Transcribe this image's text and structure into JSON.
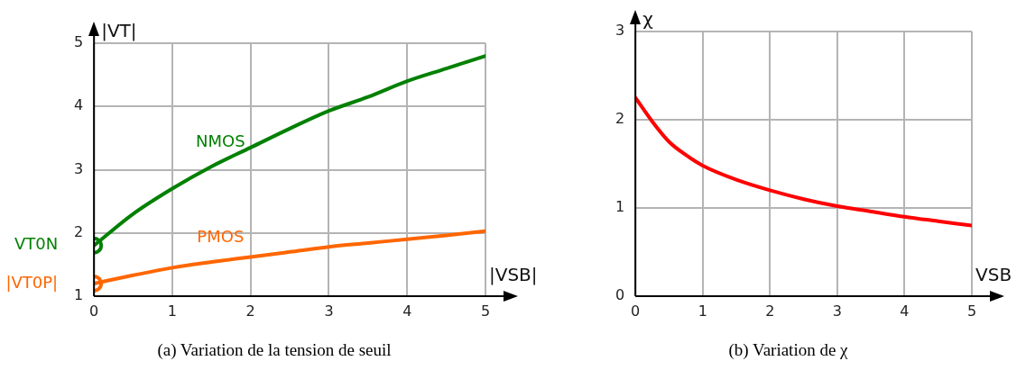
{
  "chart_data": [
    {
      "type": "line",
      "title": "(a) Variation de la tension de seuil",
      "xlabel": "|VSB|",
      "ylabel": "|VT|",
      "xlim": [
        0,
        5
      ],
      "xticks": [
        0,
        1,
        2,
        3,
        4,
        5
      ],
      "ylim": [
        1,
        5
      ],
      "yticks": [
        1,
        2,
        3,
        4,
        5
      ],
      "grid": true,
      "legend": false,
      "series": [
        {
          "name": "NMOS",
          "color": "#008000",
          "x": [
            0,
            0.5,
            1,
            1.5,
            2,
            2.5,
            3,
            3.5,
            4,
            4.5,
            5
          ],
          "values": [
            1.8,
            2.3,
            2.7,
            3.05,
            3.35,
            3.65,
            3.93,
            4.15,
            4.4,
            4.6,
            4.8
          ]
        },
        {
          "name": "PMOS",
          "color": "#ff6600",
          "x": [
            0,
            0.5,
            1,
            1.5,
            2,
            2.5,
            3,
            3.5,
            4,
            4.5,
            5
          ],
          "values": [
            1.2,
            1.33,
            1.45,
            1.54,
            1.62,
            1.7,
            1.78,
            1.84,
            1.9,
            1.96,
            2.03
          ]
        },
        {
          "type": "scatter",
          "marker": "circle",
          "color": "#008000",
          "x": [
            0
          ],
          "values": [
            1.8
          ]
        },
        {
          "type": "scatter",
          "marker": "circle",
          "color": "#ff6600",
          "x": [
            0
          ],
          "values": [
            1.2
          ]
        }
      ],
      "annotations": [
        {
          "text": "VT0N",
          "x": 0,
          "y": 1.8
        },
        {
          "text": "|VT0P|",
          "x": 0,
          "y": 1.2
        }
      ]
    },
    {
      "type": "line",
      "title": "(b) Variation de χ",
      "xlabel": "VSB",
      "ylabel": "χ",
      "xlim": [
        0,
        5
      ],
      "xticks": [
        0,
        1,
        2,
        3,
        4,
        5
      ],
      "ylim": [
        0,
        3
      ],
      "yticks": [
        0,
        1,
        2,
        3
      ],
      "grid": true,
      "legend": false,
      "series": [
        {
          "color": "#ff0000",
          "x": [
            0,
            0.25,
            0.5,
            0.75,
            1,
            1.5,
            2,
            2.5,
            3,
            3.5,
            4,
            4.5,
            5
          ],
          "values": [
            2.25,
            1.98,
            1.75,
            1.6,
            1.48,
            1.32,
            1.2,
            1.1,
            1.02,
            0.96,
            0.9,
            0.85,
            0.8
          ]
        }
      ]
    }
  ]
}
